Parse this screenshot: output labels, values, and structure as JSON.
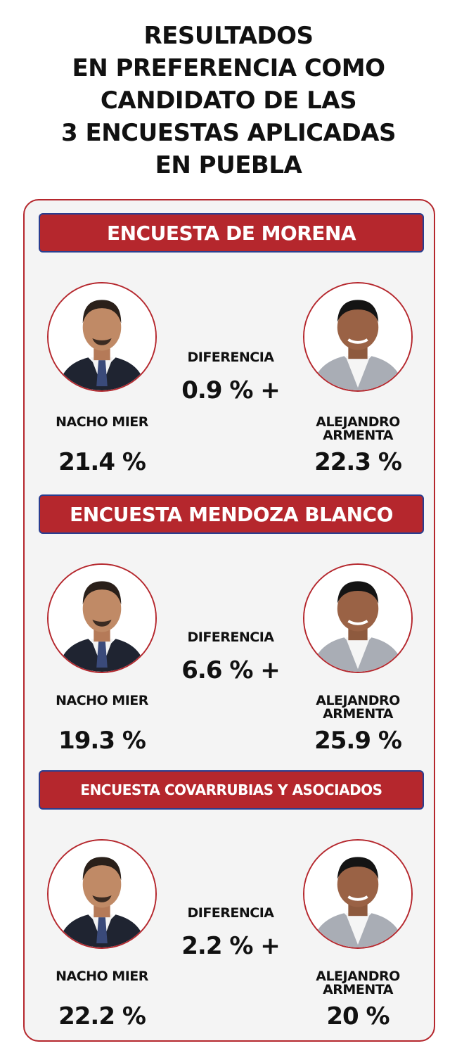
{
  "title": [
    "RESULTADOS",
    "EN PREFERENCIA COMO",
    "CANDIDATO DE LAS",
    "3 ENCUESTAS APLICADAS",
    "EN PUEBLA"
  ],
  "colors": {
    "accent": "#b5272d",
    "border_blue": "#2a3d8f",
    "panel": "#f4f4f4"
  },
  "surveys": [
    {
      "name": "ENCUESTA DE MORENA",
      "diff_label": "DIFERENCIA",
      "diff_value": "0.9 % +",
      "left": {
        "name": "NACHO MIER",
        "pct": "21.4 %"
      },
      "right": {
        "name_line1": "ALEJANDRO",
        "name_line2": "ARMENTA",
        "pct": "22.3 %"
      }
    },
    {
      "name": "ENCUESTA MENDOZA BLANCO",
      "diff_label": "DIFERENCIA",
      "diff_value": "6.6 % +",
      "left": {
        "name": "NACHO MIER",
        "pct": "19.3 %"
      },
      "right": {
        "name_line1": "ALEJANDRO",
        "name_line2": "ARMENTA",
        "pct": "25.9 %"
      }
    },
    {
      "name": "ENCUESTA COVARRUBIAS Y ASOCIADOS",
      "diff_label": "DIFERENCIA",
      "diff_value": "2.2 % +",
      "left": {
        "name": "NACHO MIER",
        "pct": "22.2 %"
      },
      "right": {
        "name_line1": "ALEJANDRO",
        "name_line2": "ARMENTA",
        "pct": "20 %"
      }
    }
  ]
}
